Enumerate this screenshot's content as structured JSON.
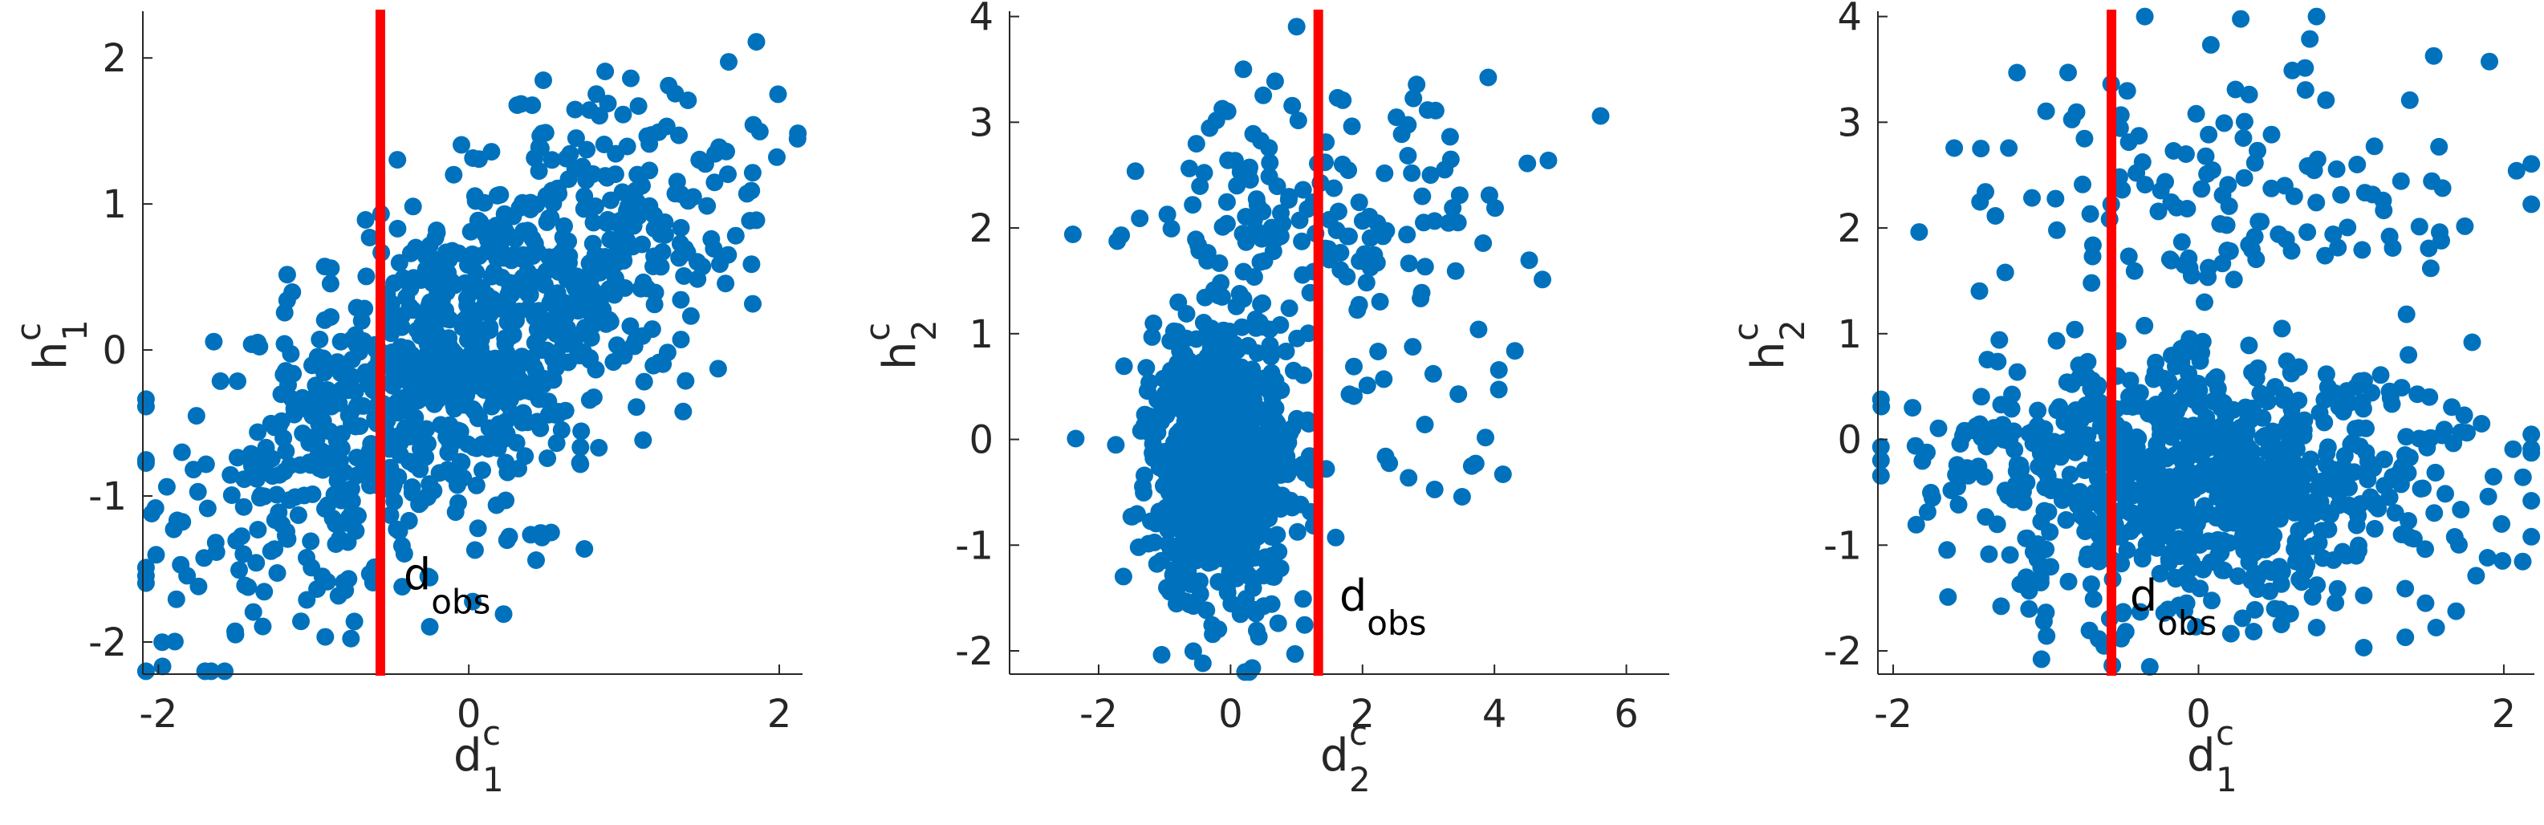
{
  "colors": {
    "points": "#0072BD",
    "observed_line": "#FF0000",
    "axis": "#262626"
  },
  "chart_data": [
    {
      "type": "scatter",
      "xlabel": {
        "base": "d",
        "sup": "c",
        "sub": "1"
      },
      "ylabel": {
        "base": "h",
        "sup": "c",
        "sub": "1"
      },
      "xlim": [
        -2.1,
        2.15
      ],
      "ylim": [
        -2.22,
        2.32
      ],
      "xticks": [
        -2,
        0,
        2
      ],
      "xtick_labels": [
        "-2",
        "0",
        "2"
      ],
      "yticks": [
        -2,
        -1,
        0,
        1,
        2
      ],
      "ytick_labels": [
        "-2",
        "-1",
        "0",
        "1",
        "2"
      ],
      "grid": false,
      "observed_x": -0.57,
      "annotation": {
        "base": "d",
        "sub": "obs",
        "x": -0.42,
        "y": -1.64
      },
      "point_count": 1000
    },
    {
      "type": "scatter",
      "xlabel": {
        "base": "d",
        "sup": "c",
        "sub": "2"
      },
      "ylabel": {
        "base": "h",
        "sup": "c",
        "sub": "2"
      },
      "xlim": [
        -3.35,
        6.65
      ],
      "ylim": [
        -2.22,
        4.05
      ],
      "xticks": [
        -2,
        0,
        2,
        4,
        6
      ],
      "xtick_labels": [
        "-2",
        "0",
        "2",
        "4",
        "6"
      ],
      "yticks": [
        -2,
        -1,
        0,
        1,
        2,
        3,
        4
      ],
      "ytick_labels": [
        "-2",
        "-1",
        "0",
        "1",
        "2",
        "3",
        "4"
      ],
      "grid": false,
      "observed_x": 1.33,
      "annotation": {
        "base": "d",
        "sub": "obs",
        "x": 1.65,
        "y": -1.62
      },
      "point_count": 1000
    },
    {
      "type": "scatter",
      "xlabel": {
        "base": "d",
        "sup": "c",
        "sub": "1"
      },
      "ylabel": {
        "base": "h",
        "sup": "c",
        "sub": "2"
      },
      "xlim": [
        -2.1,
        2.2
      ],
      "ylim": [
        -2.22,
        4.05
      ],
      "xticks": [
        -2,
        0,
        2
      ],
      "xtick_labels": [
        "-2",
        "0",
        "2"
      ],
      "yticks": [
        -2,
        -1,
        0,
        1,
        2,
        3,
        4
      ],
      "ytick_labels": [
        "-2",
        "-1",
        "0",
        "1",
        "2",
        "3",
        "4"
      ],
      "grid": false,
      "observed_x": -0.57,
      "annotation": {
        "base": "d",
        "sub": "obs",
        "x": -0.45,
        "y": -1.62
      },
      "point_count": 1000
    }
  ]
}
